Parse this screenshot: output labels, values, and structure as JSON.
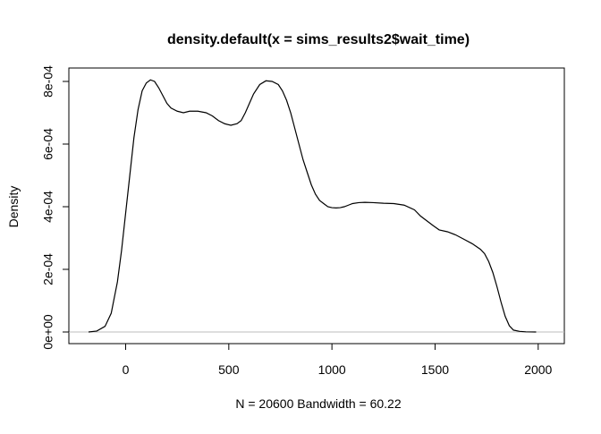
{
  "chart_data": {
    "type": "line",
    "title": "density.default(x = sims_results2$wait_time)",
    "xlabel": "N = 20600   Bandwidth = 60.22",
    "ylabel": "Density",
    "xlim": [
      -180,
      2040
    ],
    "ylim": [
      0,
      0.00081
    ],
    "x_ticks": [
      0,
      500,
      1000,
      1500,
      2000
    ],
    "x_tick_labels": [
      "0",
      "500",
      "1000",
      "1500",
      "2000"
    ],
    "y_ticks": [
      0,
      0.0002,
      0.0004,
      0.0006,
      0.0008
    ],
    "y_tick_labels": [
      "0e+00",
      "2e-04",
      "4e-04",
      "6e-04",
      "8e-04"
    ],
    "grid": false,
    "baseline": 0,
    "baseline_color": "#bebebe",
    "line_color": "#000000",
    "series": [
      {
        "x": [
          -180,
          -140,
          -100,
          -70,
          -40,
          -20,
          0,
          20,
          40,
          60,
          80,
          100,
          120,
          140,
          160,
          180,
          200,
          220,
          250,
          280,
          310,
          350,
          390,
          420,
          450,
          480,
          510,
          540,
          560,
          580,
          600,
          620,
          650,
          680,
          710,
          740,
          760,
          780,
          800,
          820,
          840,
          860,
          880,
          900,
          920,
          940,
          960,
          980,
          1000,
          1020,
          1040,
          1060,
          1080,
          1100,
          1130,
          1160,
          1200,
          1250,
          1300,
          1350,
          1400,
          1430,
          1460,
          1490,
          1520,
          1560,
          1600,
          1640,
          1680,
          1720,
          1740,
          1760,
          1780,
          1800,
          1820,
          1840,
          1860,
          1880,
          1910,
          1940,
          1990
        ],
        "y": [
          0,
          3e-06,
          1.8e-05,
          6e-05,
          0.00016,
          0.00026,
          0.00038,
          0.0005,
          0.00062,
          0.00071,
          0.00077,
          0.000795,
          0.000805,
          0.0008,
          0.00078,
          0.000755,
          0.00073,
          0.000715,
          0.000705,
          0.0007,
          0.000705,
          0.000705,
          0.0007,
          0.00069,
          0.000675,
          0.000665,
          0.00066,
          0.000665,
          0.000675,
          0.0007,
          0.00073,
          0.00076,
          0.00079,
          0.000802,
          0.0008,
          0.00079,
          0.00077,
          0.00074,
          0.0007,
          0.00065,
          0.0006,
          0.00055,
          0.00051,
          0.00047,
          0.00044,
          0.00042,
          0.00041,
          0.0004,
          0.000397,
          0.000396,
          0.000397,
          0.0004,
          0.000405,
          0.00041,
          0.000413,
          0.000414,
          0.000413,
          0.000411,
          0.00041,
          0.000405,
          0.00039,
          0.00037,
          0.000355,
          0.00034,
          0.000326,
          0.00032,
          0.00031,
          0.000296,
          0.000282,
          0.000264,
          0.00025,
          0.000225,
          0.00019,
          0.000145,
          9.5e-05,
          5e-05,
          2e-05,
          6e-06,
          2e-06,
          5e-07,
          0
        ]
      }
    ]
  }
}
